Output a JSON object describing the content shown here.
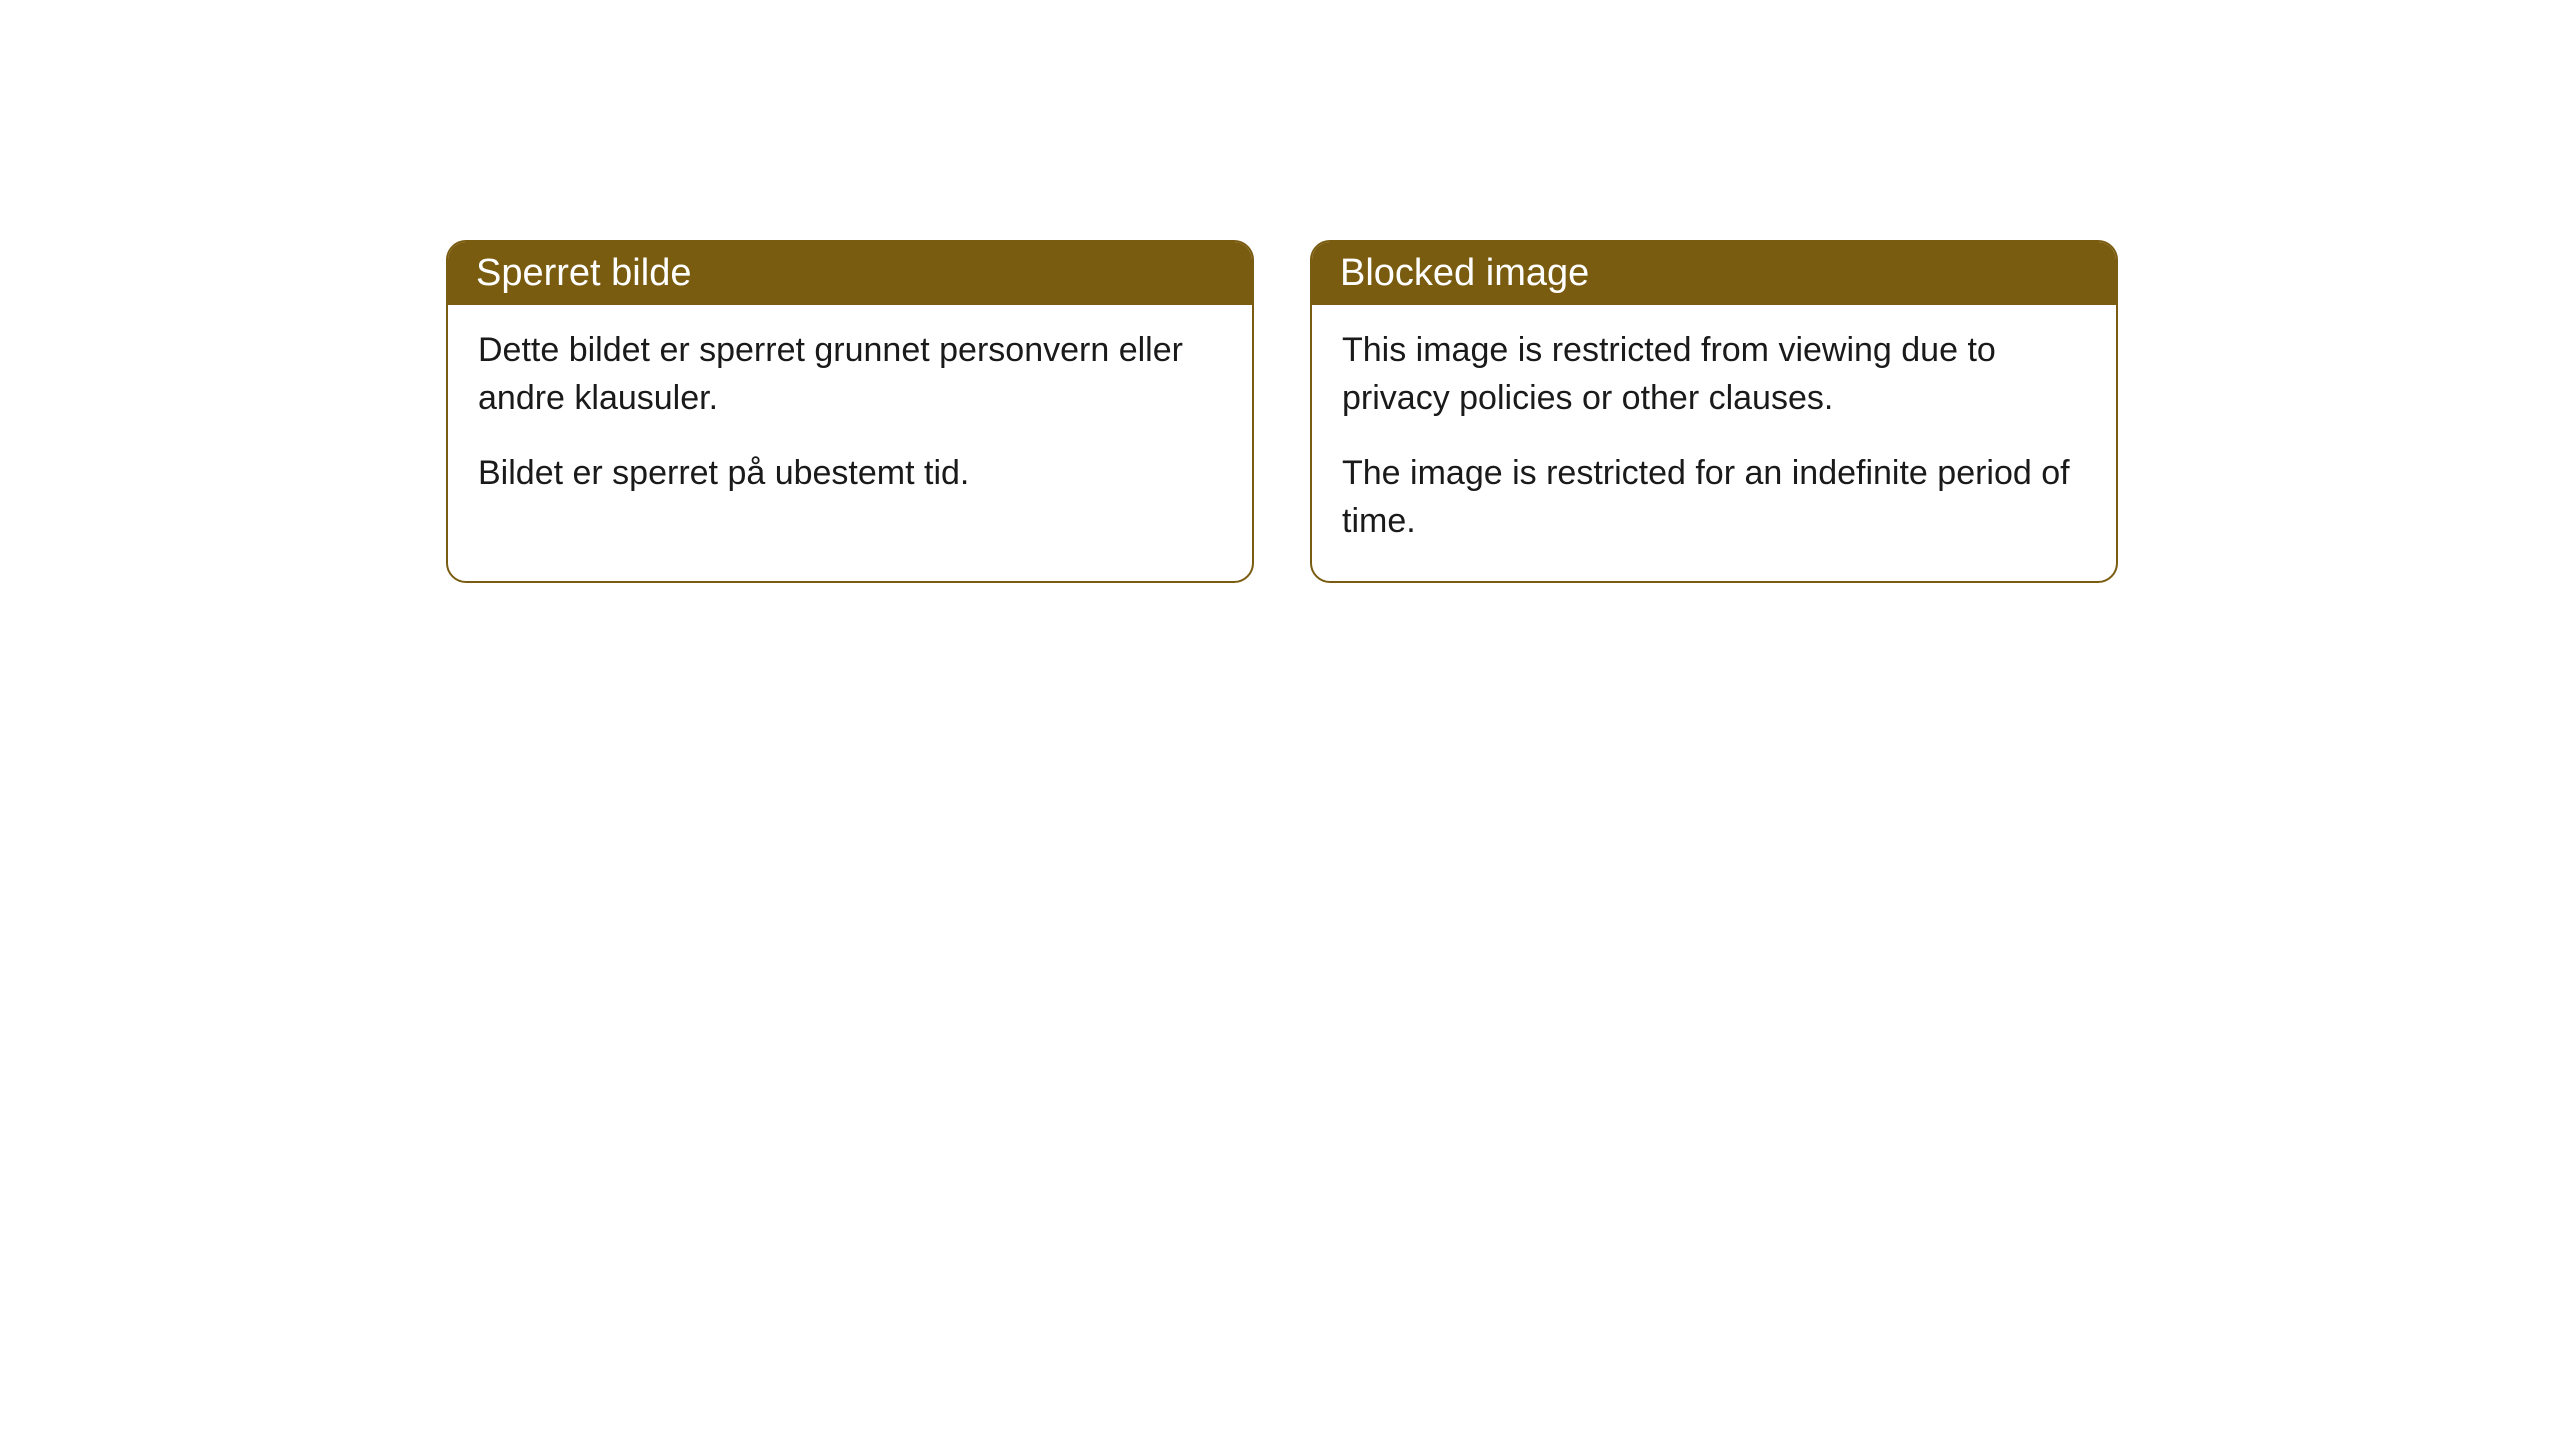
{
  "cards": [
    {
      "title": "Sperret bilde",
      "paragraph1": "Dette bildet er sperret grunnet personvern eller andre klausuler.",
      "paragraph2": "Bildet er sperret på ubestemt tid."
    },
    {
      "title": "Blocked image",
      "paragraph1": "This image is restricted from viewing due to privacy policies or other clauses.",
      "paragraph2": "The image is restricted for an indefinite period of time."
    }
  ],
  "styling": {
    "header_background": "#7a5c11",
    "header_text_color": "#ffffff",
    "border_color": "#7a5c11",
    "body_background": "#ffffff",
    "body_text_color": "#1a1a1a",
    "border_radius": 20,
    "title_fontsize": 38,
    "body_fontsize": 34
  }
}
